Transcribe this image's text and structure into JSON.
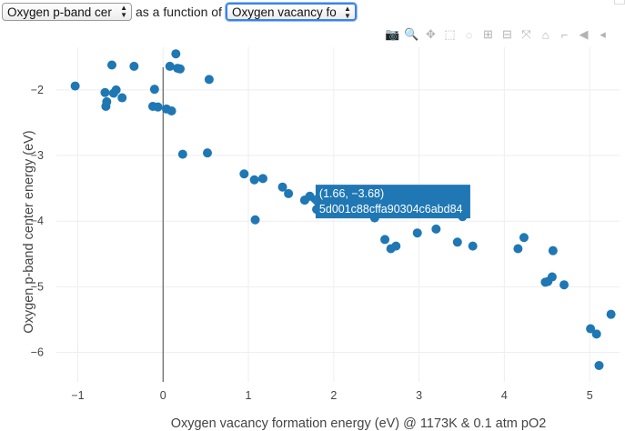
{
  "controls": {
    "y_select_value": "Oxygen p-band cer",
    "connector": "as a function of",
    "x_select_value": "Oxygen vacancy fo"
  },
  "modebar": [
    {
      "name": "camera-icon",
      "glyph": "📷"
    },
    {
      "name": "zoom-icon",
      "glyph": "🔍"
    },
    {
      "name": "pan-icon",
      "glyph": "✥"
    },
    {
      "name": "box-select-icon",
      "glyph": "⬚"
    },
    {
      "name": "lasso-select-icon",
      "glyph": "◌"
    },
    {
      "name": "zoom-in-icon",
      "glyph": "⊞"
    },
    {
      "name": "zoom-out-icon",
      "glyph": "⊟"
    },
    {
      "name": "autoscale-icon",
      "glyph": "⤧"
    },
    {
      "name": "reset-axes-icon",
      "glyph": "⌂"
    },
    {
      "name": "spike-lines-icon",
      "glyph": "⌐"
    },
    {
      "name": "hover-closest-icon",
      "glyph": "◀"
    },
    {
      "name": "hover-compare-icon",
      "glyph": "◂"
    }
  ],
  "chart_data": {
    "type": "scatter",
    "xlabel": "Oxygen vacancy formation energy (eV) @ 1173K & 0.1 atm pO2",
    "ylabel": "Oxygen p-band center energy (eV)",
    "xlim": [
      -1.25,
      5.35
    ],
    "ylim": [
      -6.45,
      -1.35
    ],
    "xticks": [
      -1,
      0,
      1,
      2,
      3,
      4,
      5
    ],
    "yticks": [
      -2,
      -3,
      -4,
      -5,
      -6
    ],
    "tick_labels_x": [
      "−1",
      "0",
      "1",
      "2",
      "3",
      "4",
      "5"
    ],
    "tick_labels_y": [
      "−2",
      "−3",
      "−4",
      "−5",
      "−6"
    ],
    "marker_color": "#1f77b4",
    "grid": true,
    "zero_line_x": true,
    "x": [
      -1.03,
      -0.6,
      -0.68,
      -0.67,
      -0.66,
      -0.58,
      -0.55,
      -0.48,
      -0.34,
      -0.12,
      -0.1,
      -0.06,
      0.04,
      0.08,
      0.1,
      0.15,
      0.17,
      0.2,
      0.23,
      0.52,
      0.54,
      0.95,
      1.07,
      1.08,
      1.17,
      1.4,
      1.47,
      1.66,
      1.72,
      1.8,
      2.48,
      2.6,
      2.67,
      2.73,
      2.98,
      3.2,
      3.45,
      3.51,
      3.63,
      4.16,
      4.23,
      4.48,
      4.51,
      4.56,
      4.57,
      4.7,
      5.01,
      5.08,
      5.11,
      5.25
    ],
    "y": [
      -1.94,
      -1.62,
      -2.04,
      -2.25,
      -2.18,
      -2.05,
      -2.0,
      -2.12,
      -1.64,
      -2.25,
      -1.99,
      -2.26,
      -2.29,
      -1.64,
      -2.32,
      -1.45,
      -1.67,
      -1.68,
      -2.98,
      -2.96,
      -1.84,
      -3.28,
      -3.37,
      -3.98,
      -3.35,
      -3.48,
      -3.58,
      -3.68,
      -3.62,
      -3.82,
      -3.95,
      -4.28,
      -4.42,
      -4.38,
      -4.18,
      -4.12,
      -4.32,
      -3.93,
      -4.38,
      -4.42,
      -4.25,
      -4.93,
      -4.92,
      -4.85,
      -4.45,
      -4.97,
      -5.64,
      -5.72,
      -6.2,
      -5.42
    ],
    "hover": {
      "x": 1.66,
      "y": -3.68,
      "line1": "(1.66, −3.68)",
      "line2": "5d001c88cffa90304c6abd84"
    }
  }
}
